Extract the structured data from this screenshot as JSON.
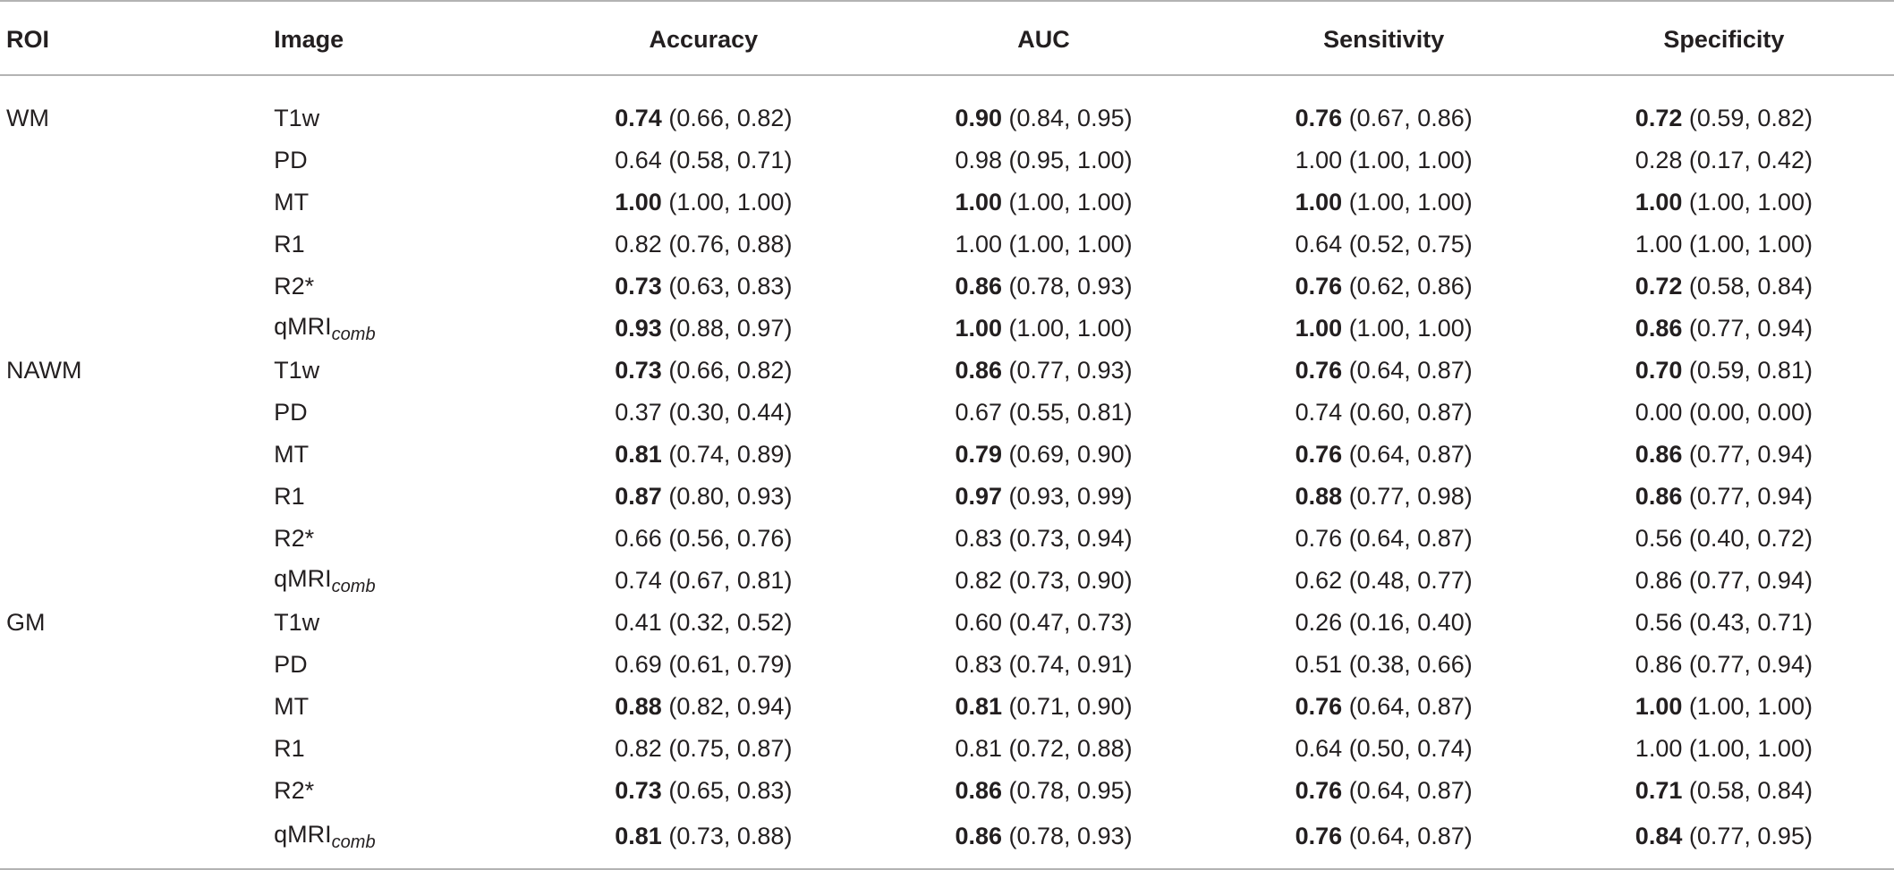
{
  "headers": [
    "ROI",
    "Image",
    "Accuracy",
    "AUC",
    "Sensitivity",
    "Specificity"
  ],
  "rows": [
    {
      "roi": "WM",
      "image": "T1w",
      "image_sub": "",
      "cells": [
        {
          "v": "0.74",
          "ci": "(0.66, 0.82)",
          "bold": true
        },
        {
          "v": "0.90",
          "ci": "(0.84, 0.95)",
          "bold": true
        },
        {
          "v": "0.76",
          "ci": "(0.67, 0.86)",
          "bold": true
        },
        {
          "v": "0.72",
          "ci": "(0.59, 0.82)",
          "bold": true
        }
      ]
    },
    {
      "roi": "",
      "image": "PD",
      "image_sub": "",
      "cells": [
        {
          "v": "0.64",
          "ci": "(0.58, 0.71)",
          "bold": false
        },
        {
          "v": "0.98",
          "ci": "(0.95, 1.00)",
          "bold": false
        },
        {
          "v": "1.00",
          "ci": "(1.00, 1.00)",
          "bold": false
        },
        {
          "v": "0.28",
          "ci": "(0.17, 0.42)",
          "bold": false
        }
      ]
    },
    {
      "roi": "",
      "image": "MT",
      "image_sub": "",
      "cells": [
        {
          "v": "1.00",
          "ci": "(1.00, 1.00)",
          "bold": true
        },
        {
          "v": "1.00",
          "ci": "(1.00, 1.00)",
          "bold": true
        },
        {
          "v": "1.00",
          "ci": "(1.00, 1.00)",
          "bold": true
        },
        {
          "v": "1.00",
          "ci": "(1.00, 1.00)",
          "bold": true
        }
      ]
    },
    {
      "roi": "",
      "image": "R1",
      "image_sub": "",
      "cells": [
        {
          "v": "0.82",
          "ci": "(0.76, 0.88)",
          "bold": false
        },
        {
          "v": "1.00",
          "ci": "(1.00, 1.00)",
          "bold": false
        },
        {
          "v": "0.64",
          "ci": "(0.52, 0.75)",
          "bold": false
        },
        {
          "v": "1.00",
          "ci": "(1.00, 1.00)",
          "bold": false
        }
      ]
    },
    {
      "roi": "",
      "image": "R2*",
      "image_sub": "",
      "cells": [
        {
          "v": "0.73",
          "ci": "(0.63, 0.83)",
          "bold": true
        },
        {
          "v": "0.86",
          "ci": "(0.78, 0.93)",
          "bold": true
        },
        {
          "v": "0.76",
          "ci": "(0.62, 0.86)",
          "bold": true
        },
        {
          "v": "0.72",
          "ci": "(0.58, 0.84)",
          "bold": true
        }
      ]
    },
    {
      "roi": "",
      "image": "qMRI",
      "image_sub": "comb",
      "cells": [
        {
          "v": "0.93",
          "ci": "(0.88, 0.97)",
          "bold": true
        },
        {
          "v": "1.00",
          "ci": "(1.00, 1.00)",
          "bold": true
        },
        {
          "v": "1.00",
          "ci": "(1.00, 1.00)",
          "bold": true
        },
        {
          "v": "0.86",
          "ci": "(0.77, 0.94)",
          "bold": true
        }
      ]
    },
    {
      "roi": "NAWM",
      "image": "T1w",
      "image_sub": "",
      "cells": [
        {
          "v": "0.73",
          "ci": "(0.66, 0.82)",
          "bold": true
        },
        {
          "v": "0.86",
          "ci": "(0.77, 0.93)",
          "bold": true
        },
        {
          "v": "0.76",
          "ci": "(0.64, 0.87)",
          "bold": true
        },
        {
          "v": "0.70",
          "ci": "(0.59, 0.81)",
          "bold": true
        }
      ]
    },
    {
      "roi": "",
      "image": "PD",
      "image_sub": "",
      "cells": [
        {
          "v": "0.37",
          "ci": "(0.30, 0.44)",
          "bold": false
        },
        {
          "v": "0.67",
          "ci": "(0.55, 0.81)",
          "bold": false
        },
        {
          "v": "0.74",
          "ci": "(0.60, 0.87)",
          "bold": false
        },
        {
          "v": "0.00",
          "ci": "(0.00, 0.00)",
          "bold": false
        }
      ]
    },
    {
      "roi": "",
      "image": "MT",
      "image_sub": "",
      "cells": [
        {
          "v": "0.81",
          "ci": "(0.74, 0.89)",
          "bold": true
        },
        {
          "v": "0.79",
          "ci": "(0.69, 0.90)",
          "bold": true
        },
        {
          "v": "0.76",
          "ci": "(0.64, 0.87)",
          "bold": true
        },
        {
          "v": "0.86",
          "ci": "(0.77, 0.94)",
          "bold": true
        }
      ]
    },
    {
      "roi": "",
      "image": "R1",
      "image_sub": "",
      "cells": [
        {
          "v": "0.87",
          "ci": "(0.80, 0.93)",
          "bold": true
        },
        {
          "v": "0.97",
          "ci": "(0.93, 0.99)",
          "bold": true
        },
        {
          "v": "0.88",
          "ci": "(0.77, 0.98)",
          "bold": true
        },
        {
          "v": "0.86",
          "ci": "(0.77, 0.94)",
          "bold": true
        }
      ]
    },
    {
      "roi": "",
      "image": "R2*",
      "image_sub": "",
      "cells": [
        {
          "v": "0.66",
          "ci": "(0.56, 0.76)",
          "bold": false
        },
        {
          "v": "0.83",
          "ci": "(0.73, 0.94)",
          "bold": false
        },
        {
          "v": "0.76",
          "ci": "(0.64, 0.87)",
          "bold": false
        },
        {
          "v": "0.56",
          "ci": "(0.40, 0.72)",
          "bold": false
        }
      ]
    },
    {
      "roi": "",
      "image": "qMRI",
      "image_sub": "comb",
      "cells": [
        {
          "v": "0.74",
          "ci": "(0.67, 0.81)",
          "bold": false
        },
        {
          "v": "0.82",
          "ci": "(0.73, 0.90)",
          "bold": false
        },
        {
          "v": "0.62",
          "ci": "(0.48, 0.77)",
          "bold": false
        },
        {
          "v": "0.86",
          "ci": "(0.77, 0.94)",
          "bold": false
        }
      ]
    },
    {
      "roi": "GM",
      "image": "T1w",
      "image_sub": "",
      "cells": [
        {
          "v": "0.41",
          "ci": "(0.32, 0.52)",
          "bold": false
        },
        {
          "v": "0.60",
          "ci": "(0.47, 0.73)",
          "bold": false
        },
        {
          "v": "0.26",
          "ci": "(0.16, 0.40)",
          "bold": false
        },
        {
          "v": "0.56",
          "ci": "(0.43, 0.71)",
          "bold": false
        }
      ]
    },
    {
      "roi": "",
      "image": "PD",
      "image_sub": "",
      "cells": [
        {
          "v": "0.69",
          "ci": "(0.61, 0.79)",
          "bold": false
        },
        {
          "v": "0.83",
          "ci": "(0.74, 0.91)",
          "bold": false
        },
        {
          "v": "0.51",
          "ci": "(0.38, 0.66)",
          "bold": false
        },
        {
          "v": "0.86",
          "ci": "(0.77, 0.94)",
          "bold": false
        }
      ]
    },
    {
      "roi": "",
      "image": "MT",
      "image_sub": "",
      "cells": [
        {
          "v": "0.88",
          "ci": "(0.82, 0.94)",
          "bold": true
        },
        {
          "v": "0.81",
          "ci": "(0.71, 0.90)",
          "bold": true
        },
        {
          "v": "0.76",
          "ci": "(0.64, 0.87)",
          "bold": true
        },
        {
          "v": "1.00",
          "ci": "(1.00, 1.00)",
          "bold": true
        }
      ]
    },
    {
      "roi": "",
      "image": "R1",
      "image_sub": "",
      "cells": [
        {
          "v": "0.82",
          "ci": "(0.75, 0.87)",
          "bold": false
        },
        {
          "v": "0.81",
          "ci": "(0.72, 0.88)",
          "bold": false
        },
        {
          "v": "0.64",
          "ci": "(0.50, 0.74)",
          "bold": false
        },
        {
          "v": "1.00",
          "ci": "(1.00, 1.00)",
          "bold": false
        }
      ]
    },
    {
      "roi": "",
      "image": "R2*",
      "image_sub": "",
      "cells": [
        {
          "v": "0.73",
          "ci": "(0.65, 0.83)",
          "bold": true
        },
        {
          "v": "0.86",
          "ci": "(0.78, 0.95)",
          "bold": true
        },
        {
          "v": "0.76",
          "ci": "(0.64, 0.87)",
          "bold": true
        },
        {
          "v": "0.71",
          "ci": "(0.58, 0.84)",
          "bold": true
        }
      ]
    },
    {
      "roi": "",
      "image": "qMRI",
      "image_sub": "comb",
      "cells": [
        {
          "v": "0.81",
          "ci": "(0.73, 0.88)",
          "bold": true
        },
        {
          "v": "0.86",
          "ci": "(0.78, 0.93)",
          "bold": true
        },
        {
          "v": "0.76",
          "ci": "(0.64, 0.87)",
          "bold": true
        },
        {
          "v": "0.84",
          "ci": "(0.77, 0.95)",
          "bold": true
        }
      ]
    }
  ]
}
